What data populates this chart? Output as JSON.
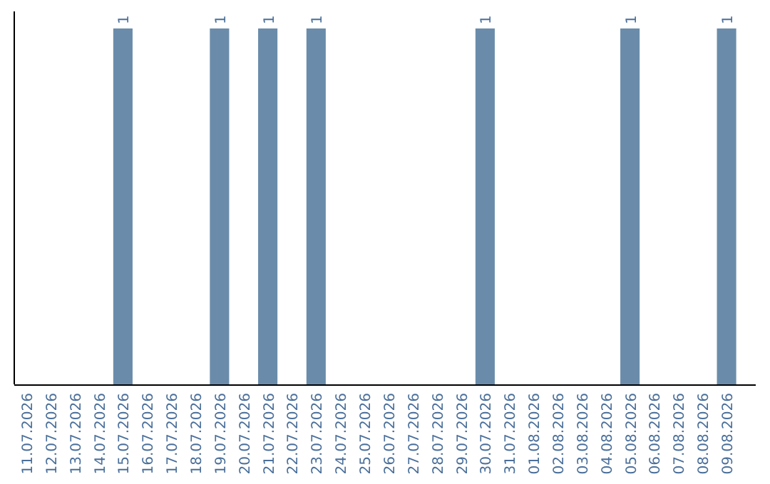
{
  "chart_data": {
    "type": "bar",
    "categories": [
      "11.07.2026",
      "12.07.2026",
      "13.07.2026",
      "14.07.2026",
      "15.07.2026",
      "16.07.2026",
      "17.07.2026",
      "18.07.2026",
      "19.07.2026",
      "20.07.2026",
      "21.07.2026",
      "22.07.2026",
      "23.07.2026",
      "24.07.2026",
      "25.07.2026",
      "26.07.2026",
      "27.07.2026",
      "28.07.2026",
      "29.07.2026",
      "30.07.2026",
      "31.07.2026",
      "01.08.2026",
      "02.08.2026",
      "03.08.2026",
      "04.08.2026",
      "05.08.2026",
      "06.08.2026",
      "07.08.2026",
      "08.08.2026",
      "09.08.2026"
    ],
    "values": [
      0,
      0,
      0,
      0,
      1,
      0,
      0,
      0,
      1,
      0,
      1,
      0,
      1,
      0,
      0,
      0,
      0,
      0,
      0,
      1,
      0,
      0,
      0,
      0,
      0,
      1,
      0,
      0,
      0,
      1
    ],
    "value_labels": [
      null,
      null,
      null,
      null,
      "1",
      null,
      null,
      null,
      "1",
      null,
      "1",
      null,
      "1",
      null,
      null,
      null,
      null,
      null,
      null,
      "1",
      null,
      null,
      null,
      null,
      null,
      "1",
      null,
      null,
      null,
      "1"
    ],
    "color": "#6a8caa"
  }
}
